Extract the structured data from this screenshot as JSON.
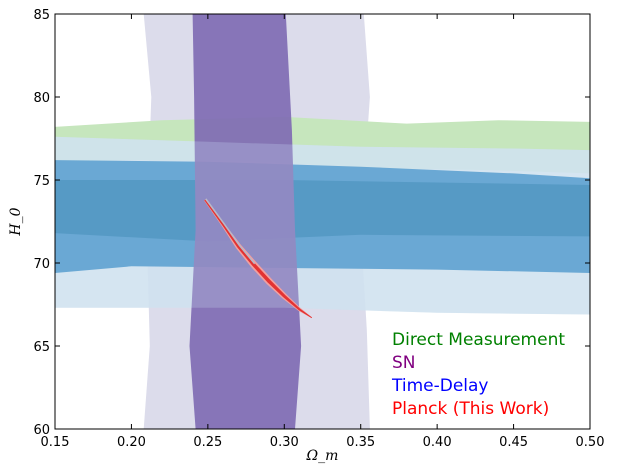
{
  "chart_data": {
    "type": "contour",
    "xlabel": "Ω_m",
    "ylabel": "H_0",
    "xlim": [
      0.15,
      0.5
    ],
    "ylim": [
      60,
      85
    ],
    "xticks": [
      "0.15",
      "0.20",
      "0.25",
      "0.30",
      "0.35",
      "0.40",
      "0.45",
      "0.50"
    ],
    "yticks": [
      "60",
      "65",
      "70",
      "75",
      "80",
      "85"
    ],
    "legend_position": "bottom-right",
    "series": [
      {
        "name": "Direct Measurement",
        "color": "#008000",
        "fill_outer": "#c6e6bd",
        "contours": {
          "outer": [
            [
              0.15,
              78.2
            ],
            [
              0.22,
              78.6
            ],
            [
              0.3,
              78.8
            ],
            [
              0.38,
              78.4
            ],
            [
              0.44,
              78.6
            ],
            [
              0.5,
              78.5
            ],
            [
              0.5,
              75.4
            ],
            [
              0.43,
              75.6
            ],
            [
              0.36,
              75.7
            ],
            [
              0.28,
              76.1
            ],
            [
              0.2,
              76.2
            ],
            [
              0.15,
              76.1
            ]
          ]
        }
      },
      {
        "name": "SN",
        "color": "#800080",
        "fill_outer": "#dcdceb",
        "fill_inner": "#7f6bb3",
        "contours": {
          "outer": [
            [
              0.208,
              85
            ],
            [
              0.352,
              85
            ],
            [
              0.356,
              80
            ],
            [
              0.35,
              72
            ],
            [
              0.354,
              66
            ],
            [
              0.356,
              60
            ],
            [
              0.208,
              60
            ],
            [
              0.212,
              65
            ],
            [
              0.21,
              72
            ],
            [
              0.213,
              80
            ]
          ],
          "inner": [
            [
              0.24,
              85
            ],
            [
              0.301,
              85
            ],
            [
              0.305,
              78
            ],
            [
              0.307,
              72
            ],
            [
              0.311,
              65
            ],
            [
              0.307,
              60
            ],
            [
              0.242,
              60
            ],
            [
              0.238,
              65
            ],
            [
              0.242,
              72
            ],
            [
              0.241,
              80
            ]
          ]
        }
      },
      {
        "name": "Time-Delay",
        "color": "#0000ff",
        "fill_outer": "#d0e2f0",
        "fill_mid": "#4090c8",
        "fill_inner": "#2b80b5",
        "contours": {
          "outer": [
            [
              0.15,
              77.6
            ],
            [
              0.25,
              77.3
            ],
            [
              0.35,
              77.0
            ],
            [
              0.45,
              76.9
            ],
            [
              0.5,
              76.8
            ],
            [
              0.5,
              66.9
            ],
            [
              0.4,
              67.0
            ],
            [
              0.3,
              67.3
            ],
            [
              0.2,
              67.3
            ],
            [
              0.15,
              67.3
            ]
          ],
          "mid": [
            [
              0.15,
              76.2
            ],
            [
              0.25,
              76.1
            ],
            [
              0.35,
              75.8
            ],
            [
              0.45,
              75.4
            ],
            [
              0.5,
              75.1
            ],
            [
              0.5,
              69.4
            ],
            [
              0.4,
              69.6
            ],
            [
              0.3,
              69.7
            ],
            [
              0.2,
              69.8
            ],
            [
              0.15,
              69.4
            ]
          ],
          "inner": [
            [
              0.15,
              75.0
            ],
            [
              0.3,
              75.0
            ],
            [
              0.5,
              74.7
            ],
            [
              0.5,
              71.6
            ],
            [
              0.35,
              71.7
            ],
            [
              0.25,
              71.3
            ],
            [
              0.15,
              71.8
            ]
          ]
        }
      },
      {
        "name": "Planck (This Work)",
        "color": "#ff0000",
        "fill_outer": "#f2a0a0",
        "fill_inner": "#e33333",
        "ridge": [
          [
            0.248,
            73.8
          ],
          [
            0.26,
            72.3
          ],
          [
            0.27,
            71.0
          ],
          [
            0.28,
            69.9
          ],
          [
            0.29,
            68.9
          ],
          [
            0.3,
            68.0
          ],
          [
            0.31,
            67.2
          ],
          [
            0.318,
            66.7
          ]
        ]
      }
    ]
  }
}
